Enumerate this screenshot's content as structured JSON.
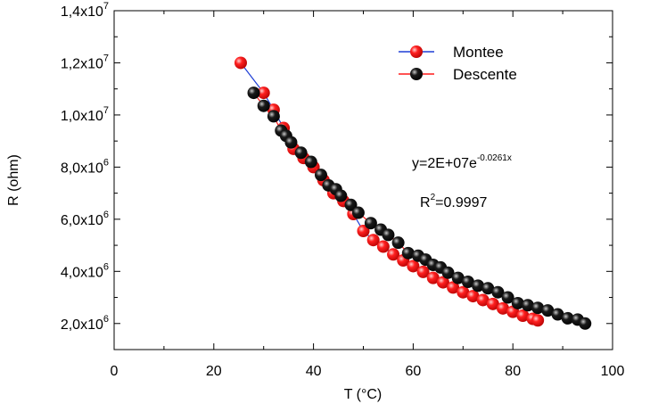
{
  "chart_data": {
    "type": "scatter",
    "xlabel": "T (°C)",
    "ylabel": "R (ohm)",
    "xlim": [
      0,
      100
    ],
    "ylim": [
      1000000,
      14000000
    ],
    "x_ticks": [
      0,
      20,
      40,
      60,
      80,
      100
    ],
    "x_tick_labels": [
      "0",
      "20",
      "40",
      "60",
      "80",
      "100"
    ],
    "y_ticks": [
      2000000,
      4000000,
      6000000,
      8000000,
      10000000,
      12000000,
      14000000
    ],
    "y_tick_labels": [
      {
        "mantissa": "2,0x10",
        "exp": "6"
      },
      {
        "mantissa": "4,0x10",
        "exp": "6"
      },
      {
        "mantissa": "6,0x10",
        "exp": "6"
      },
      {
        "mantissa": "8,0x10",
        "exp": "6"
      },
      {
        "mantissa": "1,0x10",
        "exp": "7"
      },
      {
        "mantissa": "1,2x10",
        "exp": "7"
      },
      {
        "mantissa": "1,4x10",
        "exp": "7"
      }
    ],
    "legend_position": "top-right",
    "grid": false,
    "series": [
      {
        "name": "Montee",
        "color": "#ff1a1a",
        "line_color": "#1f3fd6",
        "x": [
          25.4,
          30,
          32,
          34,
          36,
          38,
          40,
          42,
          44,
          46,
          48,
          50,
          52,
          54,
          56,
          58,
          60,
          62,
          64,
          66,
          68,
          70,
          72,
          74,
          76,
          78,
          80,
          82,
          84,
          85
        ],
        "y": [
          12000000,
          10850000,
          10200000,
          9500000,
          8700000,
          8350000,
          8000000,
          7500000,
          7000000,
          6700000,
          6200000,
          5550000,
          5200000,
          4950000,
          4650000,
          4420000,
          4200000,
          3980000,
          3750000,
          3580000,
          3380000,
          3200000,
          3050000,
          2900000,
          2750000,
          2580000,
          2450000,
          2300000,
          2180000,
          2120000
        ]
      },
      {
        "name": "Descente",
        "color": "#111111",
        "line_color": "#ff1a1a",
        "x": [
          28,
          30,
          32,
          33.5,
          34.5,
          35.5,
          37.5,
          39.5,
          41.5,
          43,
          44.5,
          45.5,
          47.5,
          49,
          51.5,
          53.5,
          55,
          57,
          59,
          61,
          62.5,
          64,
          65.5,
          67,
          69,
          71,
          73,
          75,
          77,
          79,
          81,
          83,
          85,
          87,
          89,
          91,
          93,
          94.5
        ],
        "y": [
          10850000,
          10350000,
          9950000,
          9400000,
          9200000,
          8950000,
          8550000,
          8200000,
          7700000,
          7300000,
          7150000,
          6900000,
          6550000,
          6250000,
          5850000,
          5600000,
          5400000,
          5100000,
          4700000,
          4600000,
          4450000,
          4250000,
          4150000,
          3950000,
          3750000,
          3600000,
          3450000,
          3350000,
          3200000,
          3000000,
          2780000,
          2700000,
          2600000,
          2500000,
          2350000,
          2200000,
          2150000,
          2000000
        ]
      }
    ],
    "annotations": {
      "equation": {
        "base": "y=2E+07e",
        "exp": "-0.0261x"
      },
      "r2": {
        "prefix": "R",
        "exp": "2",
        "suffix": "=0.9997"
      }
    }
  }
}
